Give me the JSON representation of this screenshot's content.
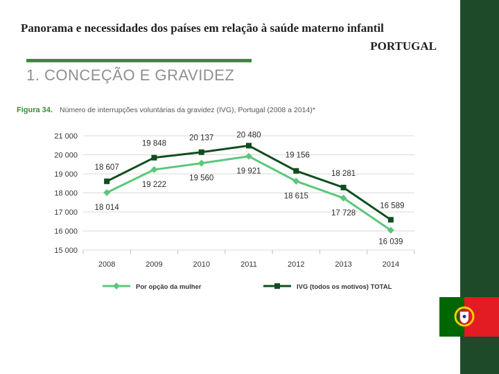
{
  "slide": {
    "title": "Panorama e necessidades dos países em relação à saúde materno infantil",
    "country": "PORTUGAL",
    "section": "1. CONCEÇÃO E GRAVIDEZ"
  },
  "colors": {
    "dark_green": "#1f4a2a",
    "accent_green": "#3c8a3c",
    "series_light": "#5cc77a",
    "series_dark": "#0f4d1f",
    "flag_green": "#006600",
    "flag_red": "#e31b23"
  },
  "chart_data": {
    "type": "line",
    "figure_label": "Figura 34.",
    "title": "Número de interrupções voluntárias da gravidez (IVG), Portugal (2008 a 2014)*",
    "categories": [
      "2008",
      "2009",
      "2010",
      "2011",
      "2012",
      "2013",
      "2014"
    ],
    "ylim": [
      15000,
      21000
    ],
    "yticks": [
      15000,
      16000,
      17000,
      18000,
      19000,
      20000,
      21000
    ],
    "ytick_labels": [
      "15 000",
      "16 000",
      "17 000",
      "18 000",
      "19 000",
      "20 000",
      "21 000"
    ],
    "grid": true,
    "legend_position": "bottom",
    "series": [
      {
        "name": "Por opção da mulher",
        "values": [
          18014,
          19222,
          19560,
          19921,
          18615,
          17728,
          16039
        ],
        "labels": [
          "18 014",
          "19 222",
          "19 560",
          "19 921",
          "18 615",
          "17 728",
          "16 039"
        ],
        "color": "#5cc77a",
        "marker": "diamond"
      },
      {
        "name": "IVG (todos os motivos) TOTAL",
        "values": [
          18607,
          19848,
          20137,
          20480,
          19156,
          18281,
          16589
        ],
        "labels": [
          "18 607",
          "19 848",
          "20 137",
          "20 480",
          "19 156",
          "18 281",
          "16 589"
        ],
        "color": "#0f4d1f",
        "marker": "square"
      }
    ]
  }
}
